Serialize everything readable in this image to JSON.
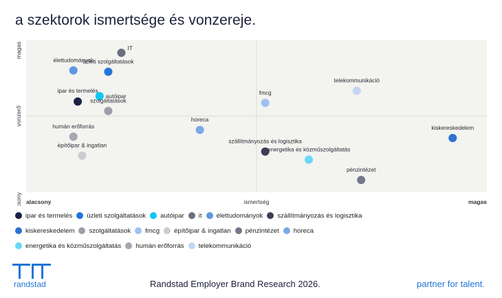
{
  "page": {
    "title": "a szektorok ismertsége és vonzereje.",
    "brand": "randstad",
    "source": "Randstad Employer Brand Research 2026.",
    "tagline": "partner for talent.",
    "logo_icon": "randstad-logo-icon"
  },
  "chart_data": {
    "type": "scatter",
    "xlabel": "ismertség",
    "ylabel": "vonzerő",
    "x_low_label": "alacsony",
    "x_high_label": "magas",
    "y_low_label": "alacsony",
    "y_high_label": "magas",
    "xlim": [
      0,
      100
    ],
    "ylim": [
      0,
      100
    ],
    "quadrant_divider": {
      "x": 50,
      "y": 50
    },
    "grid": false,
    "legend_position": "bottom",
    "series": [
      {
        "name": "ipar és termelés",
        "color": "#1b2145",
        "points": [
          {
            "x": 9,
            "y": 61
          }
        ]
      },
      {
        "name": "üzleti szolgáltatások",
        "color": "#2175d9",
        "points": [
          {
            "x": 16,
            "y": 83
          }
        ]
      },
      {
        "name": "autóipar",
        "color": "#0fc8f5",
        "points": [
          {
            "x": 14,
            "y": 65
          }
        ]
      },
      {
        "name": "it",
        "color": "#6c6f80",
        "points": [
          {
            "x": 19,
            "y": 97
          }
        ]
      },
      {
        "name": "élettudományok",
        "color": "#5f96e0",
        "points": [
          {
            "x": 8,
            "y": 84
          }
        ]
      },
      {
        "name": "szállítmányozás és logisztika",
        "color": "#3b3f56",
        "points": [
          {
            "x": 52,
            "y": 24
          }
        ]
      },
      {
        "name": "kiskereskedelem",
        "color": "#2e72d2",
        "points": [
          {
            "x": 95,
            "y": 34
          }
        ]
      },
      {
        "name": "szolgáltatások",
        "color": "#9b9ea8",
        "points": [
          {
            "x": 16,
            "y": 54
          }
        ]
      },
      {
        "name": "fmcg",
        "color": "#9fc1ef",
        "points": [
          {
            "x": 52,
            "y": 60
          }
        ]
      },
      {
        "name": "építőipar & ingatlan",
        "color": "#c9ccd2",
        "points": [
          {
            "x": 10,
            "y": 21
          }
        ]
      },
      {
        "name": "pénzintézet",
        "color": "#75788a",
        "points": [
          {
            "x": 74,
            "y": 3
          }
        ]
      },
      {
        "name": "horeca",
        "color": "#7aa9e8",
        "points": [
          {
            "x": 37,
            "y": 40
          }
        ]
      },
      {
        "name": "energetika és közműszolgáltatás",
        "color": "#6ad8f6",
        "points": [
          {
            "x": 62,
            "y": 18
          }
        ]
      },
      {
        "name": "humán erőforrás",
        "color": "#a5a7b0",
        "points": [
          {
            "x": 8,
            "y": 35
          }
        ]
      },
      {
        "name": "telekommunikáció",
        "color": "#c3d6f2",
        "points": [
          {
            "x": 73,
            "y": 69
          }
        ]
      }
    ]
  },
  "labels": [
    {
      "text": "IT",
      "anchor": "start"
    },
    {
      "text": "élettudományok",
      "anchor": "middle"
    },
    {
      "text": "üzleti szolgáltatások",
      "anchor": "middle"
    },
    {
      "text": "ipar és termelés",
      "anchor": "middle"
    },
    {
      "text": "autóipar",
      "anchor": "start"
    },
    {
      "text": "szolgáltatások",
      "anchor": "middle"
    },
    {
      "text": "telekommunikáció",
      "anchor": "middle"
    },
    {
      "text": "fmcg",
      "anchor": "middle"
    },
    {
      "text": "horeca",
      "anchor": "middle"
    },
    {
      "text": "humán erőforrás",
      "anchor": "middle"
    },
    {
      "text": "építőipar & ingatlan",
      "anchor": "middle"
    },
    {
      "text": "szállítmányozás és logisztika",
      "anchor": "middle"
    },
    {
      "text": "energetika és közműszolgáltatás",
      "anchor": "middle"
    },
    {
      "text": "kiskereskedelem",
      "anchor": "middle"
    },
    {
      "text": "pénzintézet",
      "anchor": "middle"
    }
  ]
}
